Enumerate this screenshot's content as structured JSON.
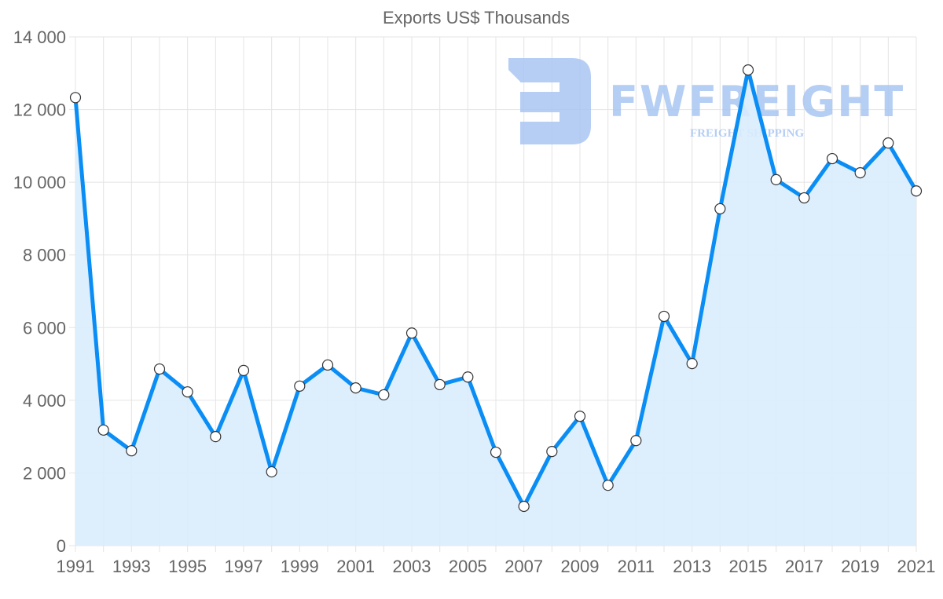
{
  "chart_data": {
    "type": "line",
    "title": "Exports US$ Thousands",
    "xlabel": "",
    "ylabel": "",
    "x": [
      1991,
      1992,
      1993,
      1994,
      1995,
      1996,
      1997,
      1998,
      1999,
      2000,
      2001,
      2002,
      2003,
      2004,
      2005,
      2006,
      2007,
      2008,
      2009,
      2010,
      2011,
      2012,
      2013,
      2014,
      2015,
      2016,
      2017,
      2018,
      2019,
      2020,
      2021
    ],
    "series": [
      {
        "name": "Exports US$ Thousands",
        "values": [
          12330,
          3180,
          2610,
          4860,
          4230,
          3000,
          4820,
          2030,
          4390,
          4970,
          4340,
          4150,
          5850,
          4430,
          4640,
          2570,
          1080,
          2590,
          3560,
          1660,
          2890,
          6310,
          5010,
          9270,
          13090,
          10070,
          9570,
          10650,
          10260,
          11080,
          9760
        ],
        "line_color": "#0a8ef5",
        "fill_color": "#d9ecfd"
      }
    ],
    "ylim": [
      0,
      14000
    ],
    "xlim": [
      1991,
      2021
    ],
    "y_ticks": [
      "0",
      "2 000",
      "4 000",
      "6 000",
      "8 000",
      "10 000",
      "12 000",
      "14 000"
    ],
    "y_tick_values": [
      0,
      2000,
      4000,
      6000,
      8000,
      10000,
      12000,
      14000
    ],
    "x_ticks": [
      "1991",
      "1993",
      "1995",
      "1997",
      "1999",
      "2001",
      "2003",
      "2005",
      "2007",
      "2009",
      "2011",
      "2013",
      "2015",
      "2017",
      "2019",
      "2021"
    ],
    "grid": true,
    "legend": "none"
  },
  "watermark": {
    "brand": "FWFREIGHT",
    "tagline": "FREIGHT SHIPPING",
    "color": "#a9c6f2"
  }
}
